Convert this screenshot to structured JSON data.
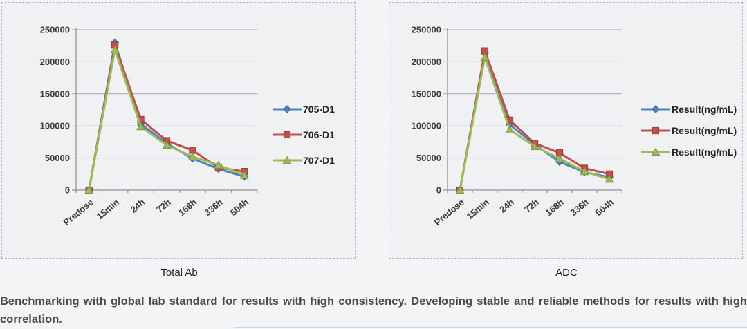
{
  "chart_data": [
    {
      "type": "line",
      "title": "Total Ab",
      "categories": [
        "Predose",
        "15min",
        "24h",
        "72h",
        "168h",
        "336h",
        "504h"
      ],
      "ylim": [
        0,
        250000
      ],
      "yticks": [
        0,
        50000,
        100000,
        150000,
        200000,
        250000
      ],
      "grid": "horizontal",
      "legend_position": "right",
      "series": [
        {
          "name": "705-D1",
          "color": "#4F81BD",
          "marker": "diamond",
          "values": [
            0,
            230000,
            103000,
            73000,
            49000,
            33000,
            21000
          ]
        },
        {
          "name": "706-D1",
          "color": "#C0504D",
          "marker": "square",
          "values": [
            0,
            226000,
            110000,
            77000,
            62000,
            35000,
            29000
          ]
        },
        {
          "name": "707-D1",
          "color": "#9BBB59",
          "marker": "triangle",
          "values": [
            0,
            219000,
            99000,
            70000,
            52000,
            39000,
            23000
          ]
        }
      ]
    },
    {
      "type": "line",
      "title": "ADC",
      "categories": [
        "Predose",
        "15min",
        "24h",
        "72h",
        "168h",
        "336h",
        "504h"
      ],
      "ylim": [
        0,
        250000
      ],
      "yticks": [
        0,
        50000,
        100000,
        150000,
        200000,
        250000
      ],
      "grid": "horizontal",
      "legend_position": "right",
      "series": [
        {
          "name": "Result(ng/mL)",
          "color": "#4F81BD",
          "marker": "diamond",
          "values": [
            0,
            214000,
            102000,
            71000,
            44000,
            28000,
            20000
          ]
        },
        {
          "name": "Result(ng/mL)",
          "color": "#C0504D",
          "marker": "square",
          "values": [
            0,
            217000,
            109000,
            73000,
            58000,
            34000,
            25000
          ]
        },
        {
          "name": "Result(ng/mL)",
          "color": "#9BBB59",
          "marker": "triangle",
          "values": [
            0,
            207000,
            94000,
            68000,
            49000,
            29000,
            17000
          ]
        }
      ]
    }
  ],
  "caption": {
    "text": "Benchmarking with global lab standard for results with high consistency. Developing stable and reliable methods for results with high correlation."
  },
  "styles": {
    "axis_color": "#8e9499",
    "grid_color": "#a6abb0",
    "panel_border_color": "#b4bac1",
    "series_blue": "#4F81BD",
    "series_red": "#C0504D",
    "series_green": "#9BBB59"
  }
}
